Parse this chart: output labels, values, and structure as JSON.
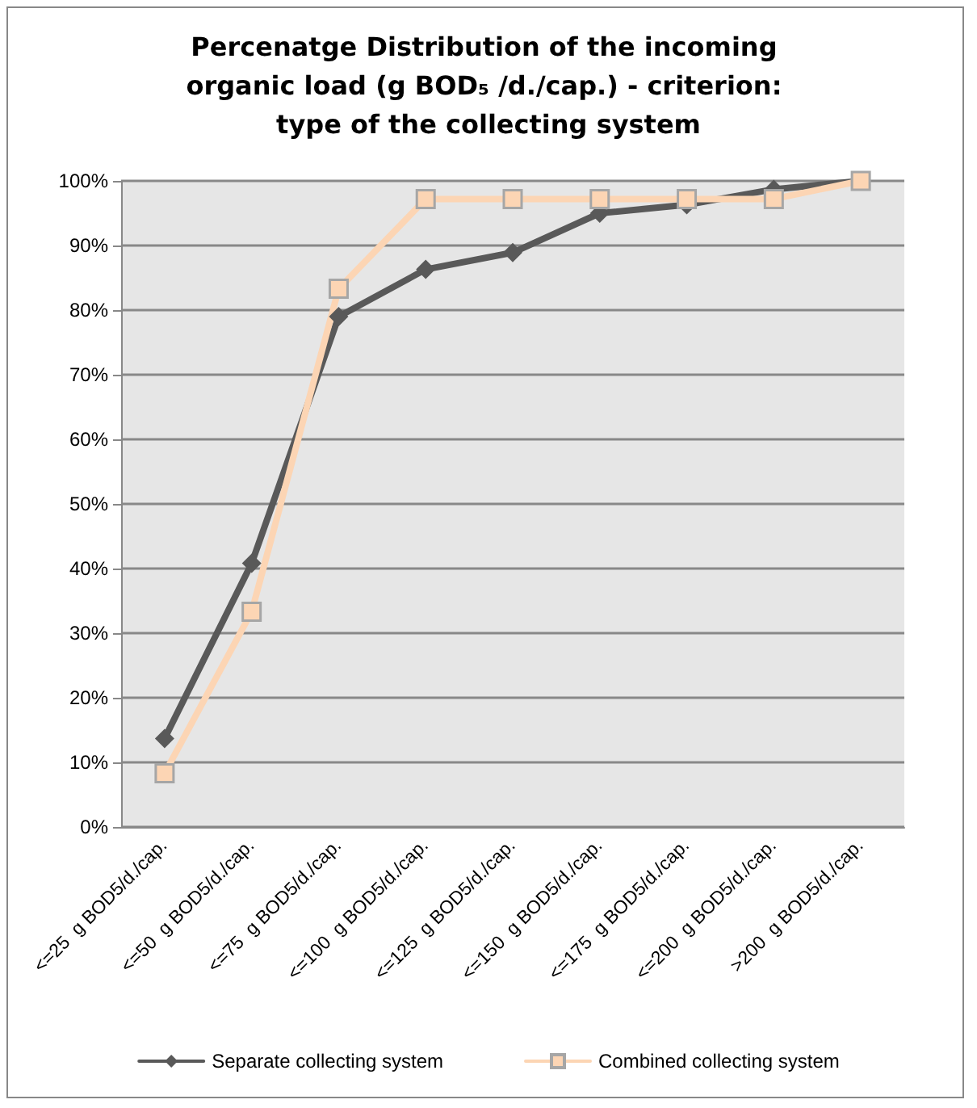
{
  "chart_data": {
    "type": "line",
    "title": "Percenatge Distribution of the incoming organic load (g BOD₅ /d./cap.) - criterion: type of the collecting system",
    "categories": [
      "<=25  g BOD5/d./cap.",
      "<=50  g BOD5/d./cap.",
      "<=75  g BOD5/d./cap.",
      "<=100  g BOD5/d./cap.",
      "<=125  g BOD5/d./cap.",
      "<=150  g BOD5/d./cap.",
      "<=175  g BOD5/d./cap.",
      "<=200  g BOD5/d./cap.",
      ">200  g BOD5/d./cap."
    ],
    "series": [
      {
        "name": "Separate collecting system",
        "color": "#595959",
        "marker": "diamond",
        "values": [
          13.7,
          40.8,
          79,
          86.3,
          88.9,
          95,
          96.3,
          98.7,
          100
        ]
      },
      {
        "name": "Combined collecting system",
        "color": "#fcd5b4",
        "marker": "square",
        "values": [
          8.3,
          33.3,
          83.3,
          97.2,
          97.2,
          97.2,
          97.2,
          97.2,
          100
        ]
      }
    ],
    "ylim": [
      0,
      100
    ],
    "yticks": [
      {
        "value": 0,
        "label": "0%"
      },
      {
        "value": 10,
        "label": "10%"
      },
      {
        "value": 20,
        "label": "20%"
      },
      {
        "value": 30,
        "label": "30%"
      },
      {
        "value": 40,
        "label": "40%"
      },
      {
        "value": 50,
        "label": "50%"
      },
      {
        "value": 60,
        "label": "60%"
      },
      {
        "value": 70,
        "label": "70%"
      },
      {
        "value": 80,
        "label": "80%"
      },
      {
        "value": 90,
        "label": "90%"
      },
      {
        "value": 100,
        "label": "100%"
      }
    ],
    "grid": "y",
    "legend": "bottom",
    "line_style": "solid"
  }
}
